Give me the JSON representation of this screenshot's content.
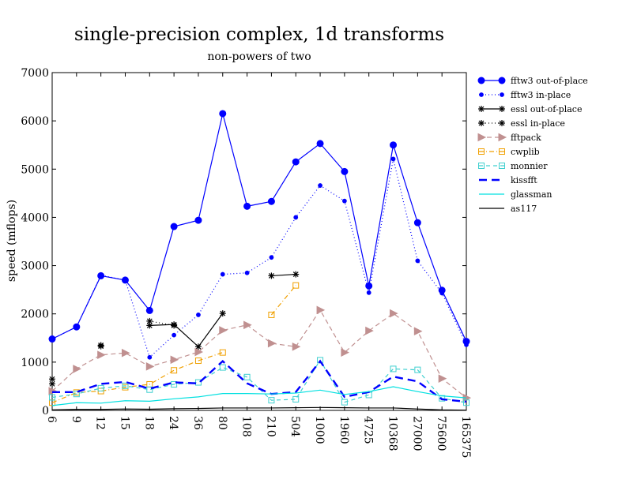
{
  "chart_data": {
    "type": "line",
    "title": "single-precision complex, 1d transforms",
    "subtitle": "non-powers of two",
    "xlabel": "",
    "ylabel": "speed (mflops)",
    "ylim": [
      0,
      7000
    ],
    "yticks": [
      0,
      1000,
      2000,
      3000,
      4000,
      5000,
      6000,
      7000
    ],
    "categories": [
      "6",
      "9",
      "12",
      "15",
      "18",
      "24",
      "36",
      "80",
      "108",
      "210",
      "504",
      "1000",
      "1960",
      "4725",
      "10368",
      "27000",
      "75600",
      "165375"
    ],
    "grid": false,
    "legend_position": "right",
    "series": [
      {
        "name": "fftw3 out-of-place",
        "color": "#0000ff",
        "dash": "",
        "marker": "circle-filled",
        "width": 1.2,
        "values": [
          1480,
          1730,
          2790,
          2700,
          2070,
          3810,
          3940,
          6150,
          4230,
          4330,
          5150,
          5530,
          4950,
          2580,
          5500,
          3890,
          2490,
          1430
        ]
      },
      {
        "name": "fftw3 in-place",
        "color": "#0000ff",
        "dash": "1,3",
        "marker": "dot",
        "width": 1.2,
        "values": [
          1480,
          1730,
          2800,
          2700,
          1100,
          1560,
          1980,
          2820,
          2850,
          3170,
          4000,
          4660,
          4340,
          2440,
          5210,
          3100,
          2430,
          1360
        ]
      },
      {
        "name": "essl out-of-place",
        "color": "#000000",
        "dash": "",
        "marker": "star",
        "width": 1.2,
        "values": [
          550,
          null,
          1330,
          null,
          1760,
          1780,
          1320,
          2010,
          null,
          2790,
          2820,
          null,
          null,
          null,
          null,
          null,
          null,
          null
        ]
      },
      {
        "name": "essl in-place",
        "color": "#000000",
        "dash": "1,3",
        "marker": "star",
        "width": 1.2,
        "values": [
          650,
          null,
          1350,
          null,
          1850,
          1760,
          null,
          null,
          null,
          null,
          null,
          null,
          null,
          null,
          null,
          null,
          null,
          null
        ]
      },
      {
        "name": "fftpack",
        "color": "#c09090",
        "dash": "6,4",
        "marker": "triangle-right",
        "width": 1.2,
        "values": [
          400,
          860,
          1150,
          1190,
          910,
          1050,
          1210,
          1660,
          1770,
          1390,
          1320,
          2080,
          1200,
          1650,
          2010,
          1640,
          660,
          260
        ]
      },
      {
        "name": "cwplib",
        "color": "#f0a000",
        "dash": "6,3,1,3",
        "marker": "square-open",
        "width": 1.2,
        "values": [
          160,
          370,
          400,
          480,
          540,
          830,
          1030,
          1200,
          null,
          1980,
          2590,
          null,
          null,
          null,
          null,
          null,
          null,
          null
        ]
      },
      {
        "name": "monnier",
        "color": "#40d0d0",
        "dash": "5,4",
        "marker": "square-open",
        "width": 1.2,
        "values": [
          270,
          340,
          460,
          510,
          430,
          540,
          580,
          890,
          690,
          210,
          230,
          1040,
          170,
          320,
          860,
          840,
          250,
          160
        ]
      },
      {
        "name": "kissfft",
        "color": "#0000ff",
        "dash": "10,6",
        "marker": "none",
        "width": 2.4,
        "values": [
          380,
          380,
          550,
          590,
          450,
          580,
          560,
          1020,
          560,
          340,
          380,
          1020,
          280,
          380,
          700,
          600,
          230,
          180
        ]
      },
      {
        "name": "glassman",
        "color": "#00e0e0",
        "dash": "",
        "marker": "none",
        "width": 1.2,
        "values": [
          100,
          160,
          150,
          200,
          190,
          240,
          280,
          350,
          350,
          340,
          360,
          420,
          330,
          390,
          490,
          390,
          300,
          260
        ]
      },
      {
        "name": "as117",
        "color": "#000000",
        "dash": "",
        "marker": "none",
        "width": 1.2,
        "values": [
          10,
          20,
          20,
          30,
          25,
          35,
          40,
          50,
          50,
          50,
          55,
          60,
          55,
          50,
          50,
          30,
          10,
          5
        ]
      }
    ]
  }
}
